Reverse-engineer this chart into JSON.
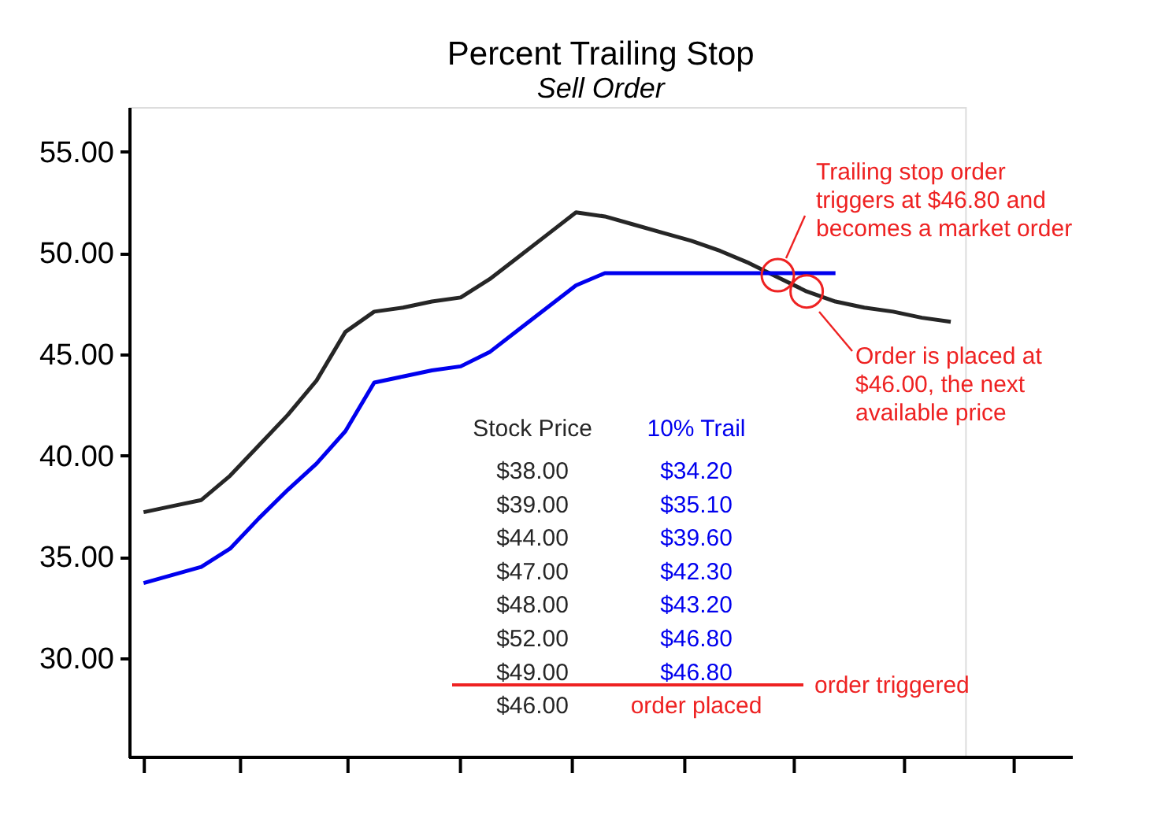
{
  "chart_data": {
    "type": "line",
    "title": "Percent Trailing Stop",
    "subtitle": "Sell Order",
    "categories": [
      null,
      null,
      null,
      null,
      null,
      null,
      null,
      null,
      null,
      null,
      null,
      null,
      null,
      null,
      null,
      null,
      null,
      null,
      null,
      null,
      null,
      null,
      null,
      null,
      null,
      null,
      null,
      null,
      null
    ],
    "ylim": [
      25.1,
      57.2
    ],
    "yticks": [
      {
        "value": 30,
        "label": "30.00"
      },
      {
        "value": 35,
        "label": "35.00"
      },
      {
        "value": 40,
        "label": "40.00"
      },
      {
        "value": 45,
        "label": "45.00"
      },
      {
        "value": 50,
        "label": "50.00"
      },
      {
        "value": 55,
        "label": "55.00"
      }
    ],
    "tick_labels": "y",
    "grid": false,
    "series": [
      {
        "name": "Stock Price",
        "color": "#262626",
        "values": [
          37.2,
          37.5,
          37.8,
          39.0,
          40.5,
          42.0,
          43.7,
          46.1,
          47.1,
          47.3,
          47.6,
          47.8,
          48.7,
          49.8,
          50.9,
          52.0,
          51.8,
          51.4,
          51.0,
          50.6,
          50.1,
          49.5,
          48.8,
          48.1,
          47.6,
          47.3,
          47.1,
          46.8,
          46.6
        ]
      },
      {
        "name": "10% Trail",
        "color": "#0000ee",
        "values": [
          33.7,
          34.1,
          34.5,
          35.4,
          36.9,
          38.3,
          39.6,
          41.2,
          43.6,
          43.9,
          44.2,
          44.4,
          45.1,
          46.2,
          47.3,
          48.4,
          49.0,
          49.0,
          49.0,
          49.0,
          49.0,
          49.0,
          49.0,
          49.0,
          49.0,
          null,
          null,
          null,
          null
        ]
      },
      {
        "type": "scatter",
        "marker": "circle",
        "color": "#ee2222",
        "values": [
          null,
          null,
          null,
          null,
          null,
          null,
          null,
          null,
          null,
          null,
          null,
          null,
          null,
          null,
          null,
          null,
          null,
          null,
          null,
          null,
          null,
          null,
          48.9,
          48.1,
          null,
          null,
          null,
          null,
          null
        ]
      }
    ],
    "annotations": [
      "Trailing stop order\ntriggers at $46.80 and\nbecomes a market order",
      "Order is placed at\n$46.00, the next\navailable price",
      "$38.00",
      "$34.20",
      "$39.00",
      "$35.10",
      "$44.00",
      "$39.60",
      "$47.00",
      "$42.30",
      "$48.00",
      "$43.20",
      "$52.00",
      "$46.80",
      "$49.00",
      "$46.80",
      "$46.00",
      "order placed",
      "order triggered"
    ]
  }
}
